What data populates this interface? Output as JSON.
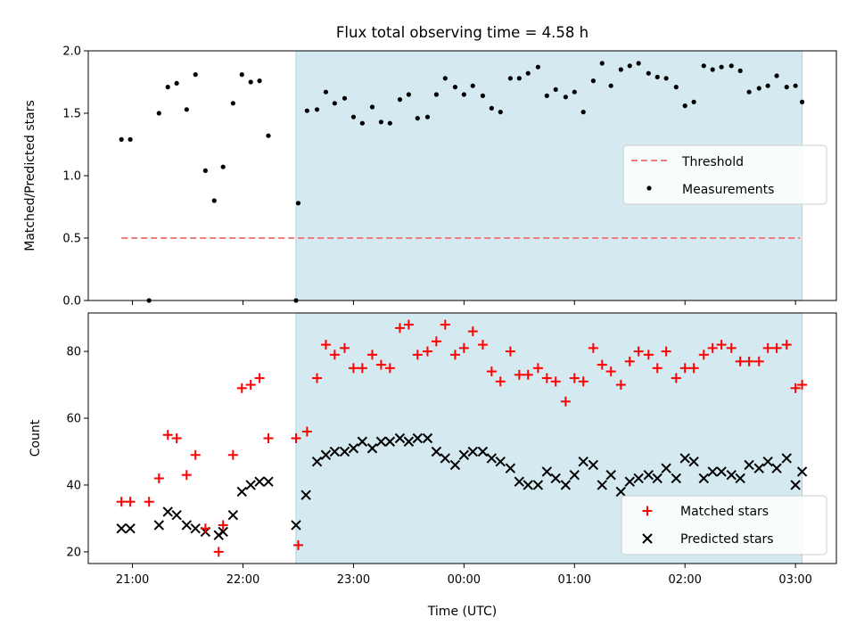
{
  "title": "Flux total observing time = 4.58 h",
  "colors": {
    "shade": "#d4eaf0",
    "threshold": "#f07c7c",
    "matched": "#ff0000",
    "predicted": "#000000",
    "measurement": "#000000"
  },
  "chart_data": [
    {
      "type": "scatter",
      "panel": "top",
      "ylabel": "Matched/Predicted stars",
      "xlabel": "",
      "ylim": [
        0,
        2.0
      ],
      "yticks": [
        0.0,
        0.5,
        1.0,
        1.5,
        2.0
      ],
      "ytick_labels": [
        "0.0",
        "0.5",
        "1.0",
        "1.5",
        "2.0"
      ],
      "x_unit": "hours after 21:00 UTC",
      "shaded_x_range": [
        1.48,
        6.06
      ],
      "legend": {
        "placement": "center-right",
        "entries": [
          "Threshold",
          "Measurements"
        ]
      },
      "threshold": {
        "name": "Threshold",
        "y": 0.5,
        "x_range": [
          -0.1,
          6.04
        ]
      },
      "series": [
        {
          "name": "Measurements",
          "x": [
            -0.1,
            -0.02,
            0.15,
            0.24,
            0.32,
            0.4,
            0.49,
            0.57,
            0.66,
            0.74,
            0.82,
            0.91,
            0.99,
            1.07,
            1.15,
            1.23,
            1.48,
            1.5,
            1.58,
            1.67,
            1.75,
            1.83,
            1.92,
            2.0,
            2.08,
            2.17,
            2.25,
            2.33,
            2.42,
            2.5,
            2.58,
            2.67,
            2.75,
            2.83,
            2.92,
            3.0,
            3.08,
            3.17,
            3.25,
            3.33,
            3.42,
            3.5,
            3.58,
            3.67,
            3.75,
            3.83,
            3.92,
            4.0,
            4.08,
            4.17,
            4.25,
            4.33,
            4.42,
            4.5,
            4.58,
            4.67,
            4.75,
            4.83,
            4.92,
            5.0,
            5.08,
            5.17,
            5.25,
            5.33,
            5.42,
            5.5,
            5.58,
            5.67,
            5.75,
            5.83,
            5.92,
            6.0,
            6.06
          ],
          "y": [
            1.29,
            1.29,
            0.0,
            1.5,
            1.71,
            1.74,
            1.53,
            1.81,
            1.04,
            0.8,
            1.07,
            1.58,
            1.81,
            1.75,
            1.76,
            1.32,
            0.0,
            0.78,
            1.52,
            1.53,
            1.67,
            1.58,
            1.62,
            1.47,
            1.42,
            1.55,
            1.43,
            1.42,
            1.61,
            1.65,
            1.46,
            1.47,
            1.65,
            1.78,
            1.71,
            1.65,
            1.72,
            1.64,
            1.54,
            1.51,
            1.78,
            1.78,
            1.82,
            1.87,
            1.64,
            1.69,
            1.63,
            1.67,
            1.51,
            1.76,
            1.9,
            1.72,
            1.85,
            1.88,
            1.9,
            1.82,
            1.79,
            1.78,
            1.71,
            1.56,
            1.59,
            1.88,
            1.85,
            1.87,
            1.88,
            1.84,
            1.67,
            1.7,
            1.72,
            1.8,
            1.71,
            1.72,
            1.59
          ]
        }
      ]
    },
    {
      "type": "scatter",
      "panel": "bottom",
      "ylabel": "Count",
      "xlabel": "Time (UTC)",
      "ylim": [
        16.5,
        91.5
      ],
      "yticks": [
        20,
        40,
        60,
        80
      ],
      "ytick_labels": [
        "20",
        "40",
        "60",
        "80"
      ],
      "xlim": [
        -0.4,
        6.37
      ],
      "xticks": [
        0,
        1,
        2,
        3,
        4,
        5,
        6
      ],
      "xtick_labels": [
        "21:00",
        "22:00",
        "23:00",
        "00:00",
        "01:00",
        "02:00",
        "03:00"
      ],
      "shaded_x_range": [
        1.48,
        6.06
      ],
      "legend": {
        "placement": "lower-right",
        "entries": [
          "Matched stars",
          "Predicted stars"
        ]
      },
      "series": [
        {
          "name": "Matched stars",
          "marker": "plus",
          "x": [
            -0.1,
            -0.02,
            0.15,
            0.24,
            0.32,
            0.4,
            0.49,
            0.57,
            0.66,
            0.78,
            0.82,
            0.91,
            0.99,
            1.07,
            1.15,
            1.23,
            1.48,
            1.5,
            1.58,
            1.67,
            1.75,
            1.83,
            1.92,
            2.0,
            2.08,
            2.17,
            2.25,
            2.33,
            2.42,
            2.5,
            2.58,
            2.67,
            2.75,
            2.83,
            2.92,
            3.0,
            3.08,
            3.17,
            3.25,
            3.33,
            3.42,
            3.5,
            3.58,
            3.67,
            3.75,
            3.83,
            3.92,
            4.0,
            4.08,
            4.17,
            4.25,
            4.33,
            4.42,
            4.5,
            4.58,
            4.67,
            4.75,
            4.83,
            4.92,
            5.0,
            5.08,
            5.17,
            5.25,
            5.33,
            5.42,
            5.5,
            5.58,
            5.67,
            5.75,
            5.83,
            5.92,
            6.0,
            6.06
          ],
          "y": [
            35,
            35,
            35,
            42,
            55,
            54,
            43,
            49,
            27,
            20,
            28,
            49,
            69,
            70,
            72,
            54,
            54,
            22,
            56,
            72,
            82,
            79,
            81,
            75,
            75,
            79,
            76,
            75,
            87,
            88,
            79,
            80,
            83,
            88,
            79,
            81,
            86,
            82,
            74,
            71,
            80,
            73,
            73,
            75,
            72,
            71,
            65,
            72,
            71,
            81,
            76,
            74,
            70,
            77,
            80,
            79,
            75,
            80,
            72,
            75,
            75,
            79,
            81,
            82,
            81,
            77,
            77,
            77,
            81,
            81,
            82,
            69,
            70
          ]
        },
        {
          "name": "Predicted stars",
          "marker": "x",
          "x": [
            -0.1,
            -0.02,
            0.24,
            0.32,
            0.4,
            0.49,
            0.57,
            0.66,
            0.78,
            0.82,
            0.91,
            0.99,
            1.07,
            1.15,
            1.23,
            1.48,
            1.57,
            1.67,
            1.75,
            1.83,
            1.92,
            2.0,
            2.08,
            2.17,
            2.25,
            2.33,
            2.42,
            2.5,
            2.58,
            2.67,
            2.75,
            2.83,
            2.92,
            3.0,
            3.08,
            3.17,
            3.25,
            3.33,
            3.42,
            3.5,
            3.58,
            3.67,
            3.75,
            3.83,
            3.92,
            4.0,
            4.08,
            4.17,
            4.25,
            4.33,
            4.42,
            4.5,
            4.58,
            4.67,
            4.75,
            4.83,
            4.92,
            5.0,
            5.08,
            5.17,
            5.25,
            5.33,
            5.42,
            5.5,
            5.58,
            5.67,
            5.75,
            5.83,
            5.92,
            6.0,
            6.06
          ],
          "y": [
            27,
            27,
            28,
            32,
            31,
            28,
            27,
            26,
            25,
            26,
            31,
            38,
            40,
            41,
            41,
            28,
            37,
            47,
            49,
            50,
            50,
            51,
            53,
            51,
            53,
            53,
            54,
            53,
            54,
            54,
            50,
            48,
            46,
            49,
            50,
            50,
            48,
            47,
            45,
            41,
            40,
            40,
            44,
            42,
            40,
            43,
            47,
            46,
            40,
            43,
            38,
            41,
            42,
            43,
            42,
            45,
            42,
            48,
            47,
            42,
            44,
            44,
            43,
            42,
            46,
            45,
            47,
            45,
            48,
            40,
            44
          ]
        }
      ]
    }
  ]
}
